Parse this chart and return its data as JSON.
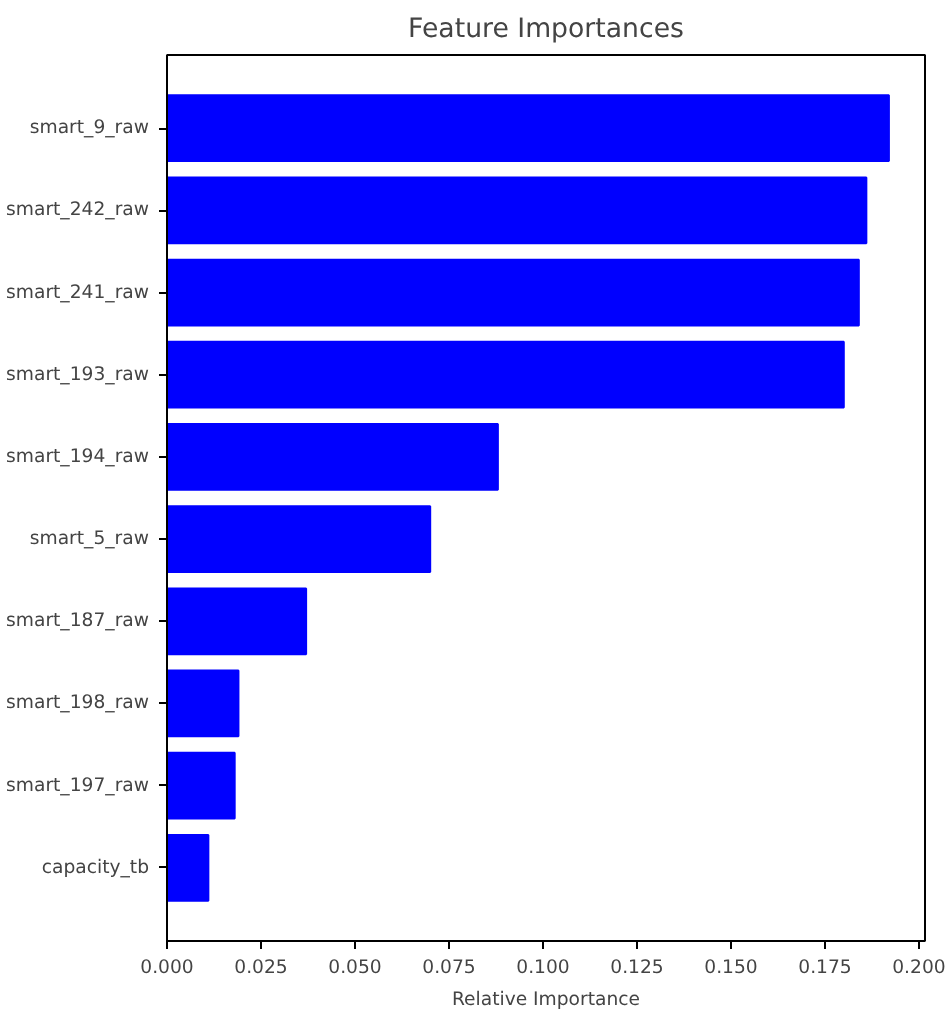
{
  "chart_data": {
    "type": "bar",
    "orientation": "horizontal",
    "title": "Feature Importances",
    "xlabel": "Relative Importance",
    "categories": [
      "smart_9_raw",
      "smart_242_raw",
      "smart_241_raw",
      "smart_193_raw",
      "smart_194_raw",
      "smart_5_raw",
      "smart_187_raw",
      "smart_198_raw",
      "smart_197_raw",
      "capacity_tb"
    ],
    "values": [
      0.192,
      0.186,
      0.184,
      0.18,
      0.088,
      0.07,
      0.037,
      0.019,
      0.018,
      0.011
    ],
    "color": "#0000ff",
    "xlim": [
      0,
      0.2016
    ],
    "xticks": [
      {
        "value": 0,
        "label": "0.000"
      },
      {
        "value": 0.025,
        "label": "0.025"
      },
      {
        "value": 0.05,
        "label": "0.050"
      },
      {
        "value": 0.075,
        "label": "0.075"
      },
      {
        "value": 0.1,
        "label": "0.100"
      },
      {
        "value": 0.125,
        "label": "0.125"
      },
      {
        "value": 0.15,
        "label": "0.150"
      },
      {
        "value": 0.175,
        "label": "0.175"
      },
      {
        "value": 0.2,
        "label": "0.200"
      }
    ],
    "grid": false
  }
}
